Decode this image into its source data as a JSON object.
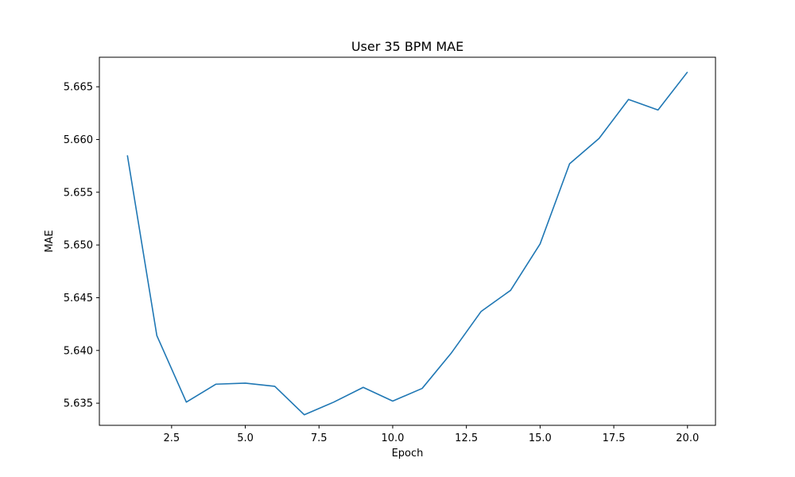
{
  "chart_data": {
    "type": "line",
    "title": "User 35 BPM MAE",
    "xlabel": "Epoch",
    "ylabel": "MAE",
    "xlim": [
      0.05,
      20.95
    ],
    "ylim": [
      5.6329,
      5.6678
    ],
    "grid": false,
    "x_ticks": [
      2.5,
      5.0,
      7.5,
      10.0,
      12.5,
      15.0,
      17.5,
      20.0
    ],
    "x_tick_labels": [
      "2.5",
      "5.0",
      "7.5",
      "10.0",
      "12.5",
      "15.0",
      "17.5",
      "20.0"
    ],
    "y_ticks": [
      5.635,
      5.64,
      5.645,
      5.65,
      5.655,
      5.66,
      5.665
    ],
    "y_tick_labels": [
      "5.635",
      "5.640",
      "5.645",
      "5.650",
      "5.655",
      "5.660",
      "5.665"
    ],
    "series": [
      {
        "color": "#1f77b4",
        "x": [
          1,
          2,
          3,
          4,
          5,
          6,
          7,
          8,
          9,
          10,
          11,
          12,
          13,
          14,
          15,
          16,
          17,
          18,
          19,
          20
        ],
        "y": [
          5.6585,
          5.6414,
          5.6351,
          5.6368,
          5.6369,
          5.6366,
          5.6339,
          5.6351,
          5.6365,
          5.6352,
          5.6364,
          5.6398,
          5.6437,
          5.6457,
          5.6501,
          5.6577,
          5.6601,
          5.6638,
          5.6628,
          5.6664
        ]
      }
    ]
  }
}
